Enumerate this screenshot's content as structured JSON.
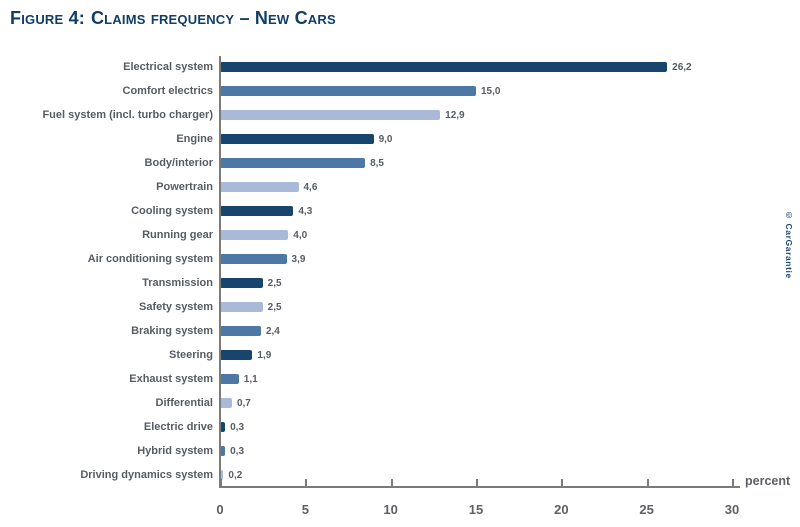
{
  "title": {
    "prefix": "Figure 4:",
    "text": "Claims frequency – New Cars"
  },
  "side_note": "© CarGarantie",
  "chart_data": {
    "type": "bar",
    "orientation": "horizontal",
    "title": "Figure 4: Claims frequency – New Cars",
    "xlabel": "percent",
    "ylabel": "",
    "xlim": [
      0,
      30
    ],
    "x_ticks": [
      0,
      5,
      10,
      15,
      20,
      25,
      30
    ],
    "grid": false,
    "legend": false,
    "decimal_separator": "comma",
    "colors": {
      "dark": "#17456c",
      "medium": "#4d77a5",
      "light": "#a9bad8"
    },
    "axis_color": "#7d7b77",
    "text_color": "#575c63",
    "title_color": "#103e68",
    "bars": [
      {
        "label": "Electrical system",
        "value": 26.2,
        "display": "26,2",
        "shade": "dark"
      },
      {
        "label": "Comfort electrics",
        "value": 15.0,
        "display": "15,0",
        "shade": "medium"
      },
      {
        "label": "Fuel system (incl. turbo charger)",
        "value": 12.9,
        "display": "12,9",
        "shade": "light"
      },
      {
        "label": "Engine",
        "value": 9.0,
        "display": "9,0",
        "shade": "dark"
      },
      {
        "label": "Body/interior",
        "value": 8.5,
        "display": "8,5",
        "shade": "medium"
      },
      {
        "label": "Powertrain",
        "value": 4.6,
        "display": "4,6",
        "shade": "light"
      },
      {
        "label": "Cooling system",
        "value": 4.3,
        "display": "4,3",
        "shade": "dark"
      },
      {
        "label": "Running gear",
        "value": 4.0,
        "display": "4,0",
        "shade": "light"
      },
      {
        "label": "Air conditioning system",
        "value": 3.9,
        "display": "3,9",
        "shade": "medium"
      },
      {
        "label": "Transmission",
        "value": 2.5,
        "display": "2,5",
        "shade": "dark"
      },
      {
        "label": "Safety system",
        "value": 2.5,
        "display": "2,5",
        "shade": "light"
      },
      {
        "label": "Braking system",
        "value": 2.4,
        "display": "2,4",
        "shade": "medium"
      },
      {
        "label": "Steering",
        "value": 1.9,
        "display": "1,9",
        "shade": "dark"
      },
      {
        "label": "Exhaust system",
        "value": 1.1,
        "display": "1,1",
        "shade": "medium"
      },
      {
        "label": "Differential",
        "value": 0.7,
        "display": "0,7",
        "shade": "light"
      },
      {
        "label": "Electric drive",
        "value": 0.3,
        "display": "0,3",
        "shade": "dark"
      },
      {
        "label": "Hybrid system",
        "value": 0.3,
        "display": "0,3",
        "shade": "medium"
      },
      {
        "label": "Driving dynamics system",
        "value": 0.2,
        "display": "0,2",
        "shade": "light"
      }
    ]
  }
}
